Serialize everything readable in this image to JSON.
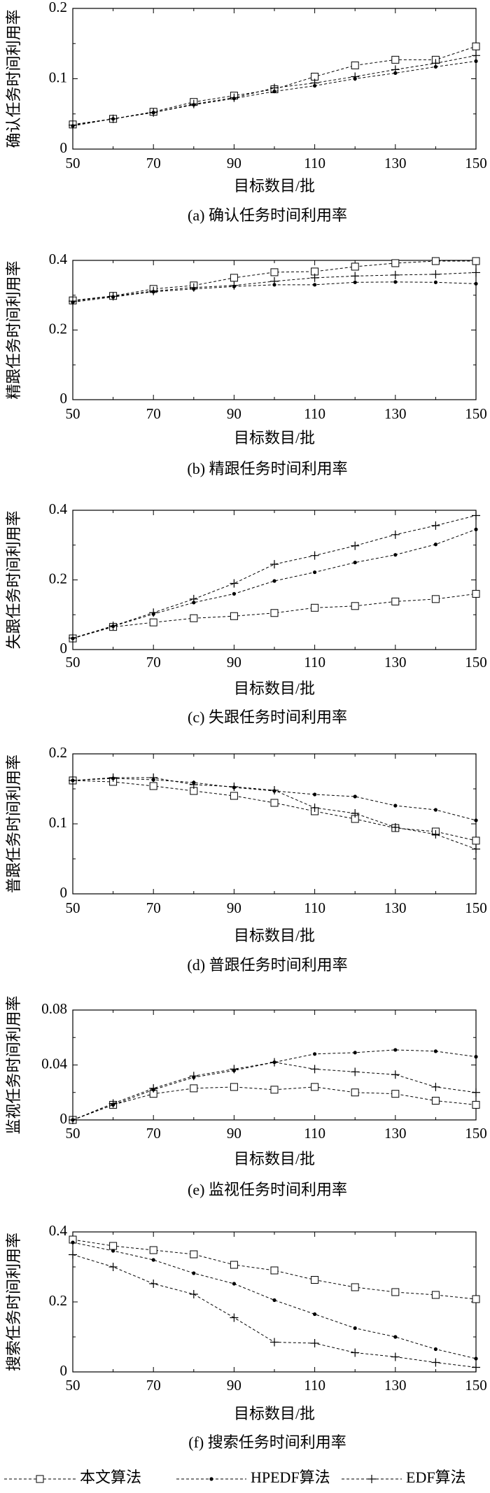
{
  "chart_data": [
    {
      "type": "line",
      "title": "(a) 确认任务时间利用率",
      "xlabel": "目标数目/批",
      "ylabel": "确认任务时间利用率",
      "x": [
        50,
        60,
        70,
        80,
        90,
        100,
        110,
        120,
        130,
        140,
        150
      ],
      "xlim": [
        50,
        150
      ],
      "ylim": [
        0,
        0.2
      ],
      "xticks": [
        50,
        70,
        90,
        110,
        130,
        150
      ],
      "xtick_labels": [
        "50",
        "70",
        "90",
        "110",
        "130",
        "150"
      ],
      "yticks": [
        0,
        0.1,
        0.2
      ],
      "ytick_labels": [
        "0",
        "0.1",
        "0.2"
      ],
      "grid": false,
      "series": [
        {
          "name": "本文算法",
          "marker": "square",
          "linestyle": "dashed",
          "color": "#000000",
          "values": [
            0.035,
            0.043,
            0.053,
            0.067,
            0.076,
            0.085,
            0.103,
            0.119,
            0.127,
            0.127,
            0.146
          ]
        },
        {
          "name": "HPEDF算法",
          "marker": "dot",
          "linestyle": "dashed",
          "color": "#000000",
          "values": [
            0.033,
            0.043,
            0.052,
            0.063,
            0.072,
            0.082,
            0.09,
            0.1,
            0.108,
            0.117,
            0.125
          ]
        },
        {
          "name": "EDF算法",
          "marker": "plus",
          "linestyle": "dashed",
          "color": "#000000",
          "values": [
            0.034,
            0.043,
            0.052,
            0.064,
            0.073,
            0.087,
            0.094,
            0.103,
            0.113,
            0.122,
            0.133
          ]
        }
      ]
    },
    {
      "type": "line",
      "title": "(b) 精跟任务时间利用率",
      "xlabel": "目标数目/批",
      "ylabel": "精跟任务时间利用率",
      "x": [
        50,
        60,
        70,
        80,
        90,
        100,
        110,
        120,
        130,
        140,
        150
      ],
      "xlim": [
        50,
        150
      ],
      "ylim": [
        0,
        0.4
      ],
      "xticks": [
        50,
        70,
        90,
        110,
        130,
        150
      ],
      "xtick_labels": [
        "50",
        "70",
        "90",
        "110",
        "130",
        "150"
      ],
      "yticks": [
        0,
        0.2,
        0.4
      ],
      "ytick_labels": [
        "0",
        "0.2",
        "0.4"
      ],
      "grid": false,
      "series": [
        {
          "name": "本文算法",
          "marker": "square",
          "linestyle": "dashed",
          "color": "#000000",
          "values": [
            0.285,
            0.298,
            0.318,
            0.328,
            0.35,
            0.366,
            0.368,
            0.382,
            0.392,
            0.398,
            0.398
          ]
        },
        {
          "name": "HPEDF算法",
          "marker": "dot",
          "linestyle": "dashed",
          "color": "#000000",
          "values": [
            0.28,
            0.295,
            0.31,
            0.318,
            0.325,
            0.33,
            0.33,
            0.337,
            0.338,
            0.337,
            0.333
          ]
        },
        {
          "name": "EDF算法",
          "marker": "plus",
          "linestyle": "dashed",
          "color": "#000000",
          "values": [
            0.283,
            0.297,
            0.312,
            0.322,
            0.328,
            0.34,
            0.35,
            0.355,
            0.358,
            0.36,
            0.365
          ]
        }
      ]
    },
    {
      "type": "line",
      "title": "(c) 失跟任务时间利用率",
      "xlabel": "目标数目/批",
      "ylabel": "失跟任务时间利用率",
      "x": [
        50,
        60,
        70,
        80,
        90,
        100,
        110,
        120,
        130,
        140,
        150
      ],
      "xlim": [
        50,
        150
      ],
      "ylim": [
        0,
        0.4
      ],
      "xticks": [
        50,
        70,
        90,
        110,
        130,
        150
      ],
      "xtick_labels": [
        "50",
        "70",
        "90",
        "110",
        "130",
        "150"
      ],
      "yticks": [
        0,
        0.2,
        0.4
      ],
      "ytick_labels": [
        "0",
        "0.2",
        "0.4"
      ],
      "grid": false,
      "series": [
        {
          "name": "本文算法",
          "marker": "square",
          "linestyle": "dashed",
          "color": "#000000",
          "values": [
            0.032,
            0.065,
            0.078,
            0.09,
            0.096,
            0.105,
            0.12,
            0.125,
            0.138,
            0.145,
            0.16
          ]
        },
        {
          "name": "HPEDF算法",
          "marker": "dot",
          "linestyle": "dashed",
          "color": "#000000",
          "values": [
            0.032,
            0.067,
            0.102,
            0.135,
            0.16,
            0.197,
            0.222,
            0.25,
            0.272,
            0.302,
            0.345
          ]
        },
        {
          "name": "EDF算法",
          "marker": "plus",
          "linestyle": "dashed",
          "color": "#000000",
          "values": [
            0.033,
            0.068,
            0.106,
            0.145,
            0.19,
            0.245,
            0.27,
            0.298,
            0.33,
            0.356,
            0.385
          ]
        }
      ]
    },
    {
      "type": "line",
      "title": "(d) 普跟任务时间利用率",
      "xlabel": "目标数目/批",
      "ylabel": "普跟任务时间利用率",
      "x": [
        50,
        60,
        70,
        80,
        90,
        100,
        110,
        120,
        130,
        140,
        150
      ],
      "xlim": [
        50,
        150
      ],
      "ylim": [
        0,
        0.2
      ],
      "xticks": [
        50,
        70,
        90,
        110,
        130,
        150
      ],
      "xtick_labels": [
        "50",
        "70",
        "90",
        "110",
        "130",
        "150"
      ],
      "yticks": [
        0,
        0.1,
        0.2
      ],
      "ytick_labels": [
        "0",
        "0.1",
        "0.2"
      ],
      "grid": false,
      "series": [
        {
          "name": "本文算法",
          "marker": "square",
          "linestyle": "dashed",
          "color": "#000000",
          "values": [
            0.162,
            0.16,
            0.154,
            0.147,
            0.14,
            0.13,
            0.118,
            0.107,
            0.094,
            0.089,
            0.076
          ]
        },
        {
          "name": "HPEDF算法",
          "marker": "dot",
          "linestyle": "dashed",
          "color": "#000000",
          "values": [
            0.162,
            0.165,
            0.163,
            0.159,
            0.152,
            0.147,
            0.142,
            0.139,
            0.126,
            0.12,
            0.105
          ]
        },
        {
          "name": "EDF算法",
          "marker": "plus",
          "linestyle": "dashed",
          "color": "#000000",
          "values": [
            0.162,
            0.166,
            0.166,
            0.156,
            0.153,
            0.148,
            0.123,
            0.115,
            0.095,
            0.085,
            0.064
          ]
        }
      ]
    },
    {
      "type": "line",
      "title": "(e) 监视任务时间利用率",
      "xlabel": "目标数目/批",
      "ylabel": "监视任务时间利用率",
      "x": [
        50,
        60,
        70,
        80,
        90,
        100,
        110,
        120,
        130,
        140,
        150
      ],
      "xlim": [
        50,
        150
      ],
      "ylim": [
        0,
        0.08
      ],
      "xticks": [
        50,
        70,
        90,
        110,
        130,
        150
      ],
      "xtick_labels": [
        "50",
        "70",
        "90",
        "110",
        "130",
        "150"
      ],
      "yticks": [
        0,
        0.04,
        0.08
      ],
      "ytick_labels": [
        "0",
        "0.04",
        "0.08"
      ],
      "grid": false,
      "series": [
        {
          "name": "本文算法",
          "marker": "square",
          "linestyle": "dashed",
          "color": "#000000",
          "values": [
            0.0,
            0.011,
            0.019,
            0.023,
            0.024,
            0.022,
            0.024,
            0.02,
            0.019,
            0.014,
            0.011
          ]
        },
        {
          "name": "HPEDF算法",
          "marker": "dot",
          "linestyle": "dashed",
          "color": "#000000",
          "values": [
            0.0,
            0.011,
            0.022,
            0.031,
            0.036,
            0.042,
            0.048,
            0.049,
            0.051,
            0.05,
            0.046
          ]
        },
        {
          "name": "EDF算法",
          "marker": "plus",
          "linestyle": "dashed",
          "color": "#000000",
          "values": [
            0.0,
            0.012,
            0.023,
            0.032,
            0.037,
            0.042,
            0.037,
            0.035,
            0.033,
            0.024,
            0.02
          ]
        }
      ]
    },
    {
      "type": "line",
      "title": "(f) 搜索任务时间利用率",
      "xlabel": "目标数目/批",
      "ylabel": "搜索任务时间利用率",
      "x": [
        50,
        60,
        70,
        80,
        90,
        100,
        110,
        120,
        130,
        140,
        150
      ],
      "xlim": [
        50,
        150
      ],
      "ylim": [
        0,
        0.4
      ],
      "xticks": [
        50,
        70,
        90,
        110,
        130,
        150
      ],
      "xtick_labels": [
        "50",
        "70",
        "90",
        "110",
        "130",
        "150"
      ],
      "yticks": [
        0,
        0.2,
        0.4
      ],
      "ytick_labels": [
        "0",
        "0.2",
        "0.4"
      ],
      "grid": false,
      "series": [
        {
          "name": "本文算法",
          "marker": "square",
          "linestyle": "dashed",
          "color": "#000000",
          "values": [
            0.378,
            0.36,
            0.348,
            0.336,
            0.306,
            0.29,
            0.263,
            0.242,
            0.228,
            0.22,
            0.208
          ]
        },
        {
          "name": "HPEDF算法",
          "marker": "dot",
          "linestyle": "dashed",
          "color": "#000000",
          "values": [
            0.37,
            0.346,
            0.32,
            0.282,
            0.252,
            0.205,
            0.165,
            0.125,
            0.1,
            0.065,
            0.038
          ]
        },
        {
          "name": "EDF算法",
          "marker": "plus",
          "linestyle": "dashed",
          "color": "#000000",
          "values": [
            0.335,
            0.3,
            0.252,
            0.222,
            0.155,
            0.085,
            0.082,
            0.055,
            0.043,
            0.027,
            0.013
          ]
        }
      ]
    }
  ],
  "legend": {
    "position": "bottom",
    "items": [
      {
        "label": "本文算法",
        "marker": "square"
      },
      {
        "label": "HPEDF算法",
        "marker": "dot"
      },
      {
        "label": "EDF算法",
        "marker": "plus"
      }
    ]
  }
}
